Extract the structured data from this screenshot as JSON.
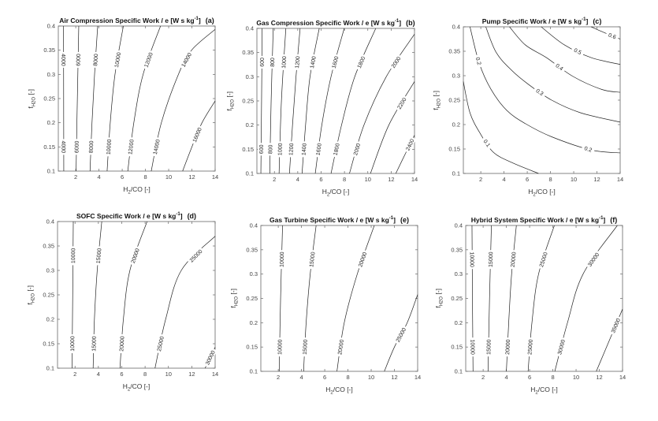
{
  "chart_data": [
    {
      "type": "contour",
      "id": "a",
      "title": "Air Compression Specific Work / e [W s kg",
      "title_sup": "-1",
      "title_end": "]",
      "tag": "(a)",
      "xlabel_main": "H",
      "xlabel_sub": "2",
      "xlabel_end": "/CO [-]",
      "ylabel_main": "f",
      "ylabel_sub": "H2O",
      "ylabel_end": " [-]",
      "xlim": [
        0.5,
        14
      ],
      "ylim": [
        0.1,
        0.4
      ],
      "xticks": [
        2,
        4,
        6,
        8,
        10,
        12,
        14
      ],
      "yticks": [
        0.1,
        0.15,
        0.2,
        0.25,
        0.3,
        0.35,
        0.4
      ],
      "contours": [
        {
          "level": "4000",
          "points": [
            [
              0.97,
              0.1
            ],
            [
              0.96,
              0.25
            ],
            [
              0.95,
              0.4
            ]
          ]
        },
        {
          "level": "6000",
          "points": [
            [
              2.03,
              0.1
            ],
            [
              2.1,
              0.2
            ],
            [
              2.18,
              0.3
            ],
            [
              2.26,
              0.4
            ]
          ]
        },
        {
          "level": "8000",
          "points": [
            [
              3.23,
              0.1
            ],
            [
              3.4,
              0.2
            ],
            [
              3.62,
              0.3
            ],
            [
              3.89,
              0.4
            ]
          ]
        },
        {
          "level": "10000",
          "points": [
            [
              4.7,
              0.1
            ],
            [
              4.97,
              0.2
            ],
            [
              5.38,
              0.3
            ],
            [
              6.1,
              0.4
            ]
          ]
        },
        {
          "level": "12000",
          "points": [
            [
              6.48,
              0.1
            ],
            [
              7.0,
              0.2
            ],
            [
              7.8,
              0.3
            ],
            [
              9.3,
              0.4
            ]
          ]
        },
        {
          "level": "14000",
          "points": [
            [
              8.5,
              0.1
            ],
            [
              9.37,
              0.2
            ],
            [
              10.84,
              0.3
            ],
            [
              11.97,
              0.35
            ],
            [
              14,
              0.393
            ]
          ]
        },
        {
          "level": "16000",
          "points": [
            [
              11.2,
              0.1
            ],
            [
              12.0,
              0.15
            ],
            [
              12.87,
              0.2
            ],
            [
              14,
              0.245
            ]
          ]
        }
      ]
    },
    {
      "type": "contour",
      "id": "b",
      "title": "Gas Compression Specific Work / e [W s kg",
      "title_sup": "-1",
      "title_end": "]",
      "tag": "(b)",
      "xlabel_main": "H",
      "xlabel_sub": "2",
      "xlabel_end": "/CO [-]",
      "ylabel_main": "f",
      "ylabel_sub": "H2O",
      "ylabel_end": " [-]",
      "xlim": [
        0.5,
        14
      ],
      "ylim": [
        0.1,
        0.4
      ],
      "xticks": [
        2,
        4,
        6,
        8,
        10,
        12,
        14
      ],
      "yticks": [
        0.1,
        0.15,
        0.2,
        0.25,
        0.3,
        0.35,
        0.4
      ],
      "contours": [
        {
          "level": "600",
          "points": [
            [
              0.84,
              0.1
            ],
            [
              0.9,
              0.25
            ],
            [
              0.95,
              0.4
            ]
          ]
        },
        {
          "level": "800",
          "points": [
            [
              1.6,
              0.1
            ],
            [
              1.72,
              0.25
            ],
            [
              1.9,
              0.4
            ]
          ]
        },
        {
          "level": "1000",
          "points": [
            [
              2.4,
              0.1
            ],
            [
              2.6,
              0.25
            ],
            [
              2.98,
              0.4
            ]
          ]
        },
        {
          "level": "1200",
          "points": [
            [
              3.29,
              0.1
            ],
            [
              3.55,
              0.2
            ],
            [
              3.85,
              0.3
            ],
            [
              4.2,
              0.4
            ]
          ]
        },
        {
          "level": "1400",
          "points": [
            [
              4.37,
              0.1
            ],
            [
              4.67,
              0.2
            ],
            [
              5.05,
              0.3
            ],
            [
              5.84,
              0.4
            ]
          ]
        },
        {
          "level": "1600",
          "points": [
            [
              5.5,
              0.1
            ],
            [
              6.06,
              0.2
            ],
            [
              6.85,
              0.3
            ],
            [
              7.98,
              0.4
            ]
          ]
        },
        {
          "level": "1800",
          "points": [
            [
              6.85,
              0.1
            ],
            [
              7.75,
              0.2
            ],
            [
              8.88,
              0.3
            ],
            [
              10.68,
              0.4
            ]
          ]
        },
        {
          "level": "2000",
          "points": [
            [
              8.43,
              0.1
            ],
            [
              9.67,
              0.2
            ],
            [
              11.58,
              0.3
            ],
            [
              14,
              0.388
            ]
          ]
        },
        {
          "level": "2200",
          "points": [
            [
              10.23,
              0.1
            ],
            [
              11.8,
              0.2
            ],
            [
              14,
              0.29
            ]
          ]
        },
        {
          "level": "2400",
          "points": [
            [
              12.4,
              0.1
            ],
            [
              13.2,
              0.14
            ],
            [
              14,
              0.179
            ]
          ]
        }
      ]
    },
    {
      "type": "contour",
      "id": "c",
      "title": "Pump Specific Work / e [W s kg",
      "title_sup": "-1",
      "title_end": "]",
      "tag": "(c)",
      "xlabel_main": "H",
      "xlabel_sub": "2",
      "xlabel_end": "/CO [-]",
      "ylabel_main": "f",
      "ylabel_sub": "H2O",
      "ylabel_end": " [-]",
      "xlim": [
        0.5,
        14
      ],
      "ylim": [
        0.1,
        0.4
      ],
      "xticks": [
        2,
        4,
        6,
        8,
        10,
        12,
        14
      ],
      "yticks": [
        0.1,
        0.15,
        0.2,
        0.25,
        0.3,
        0.35,
        0.4
      ],
      "contours": [
        {
          "level": "0.1",
          "points": [
            [
              0.5,
              0.288
            ],
            [
              1.07,
              0.224
            ],
            [
              1.97,
              0.181
            ],
            [
              3.1,
              0.143
            ],
            [
              4.7,
              0.122
            ],
            [
              6.97,
              0.1
            ]
          ]
        },
        {
          "level": "0.2",
          "points": [
            [
              1.07,
              0.4
            ],
            [
              1.86,
              0.326
            ],
            [
              2.88,
              0.272
            ],
            [
              4.24,
              0.229
            ],
            [
              5.83,
              0.202
            ],
            [
              8.1,
              0.175
            ],
            [
              11.5,
              0.148
            ],
            [
              14,
              0.142
            ]
          ]
        },
        {
          "level": "0.3",
          "points": [
            [
              2.43,
              0.4
            ],
            [
              3.34,
              0.347
            ],
            [
              4.7,
              0.31
            ],
            [
              6.06,
              0.283
            ],
            [
              8.1,
              0.25
            ],
            [
              10.6,
              0.224
            ],
            [
              14,
              0.205
            ]
          ]
        },
        {
          "level": "0.4",
          "points": [
            [
              4.47,
              0.4
            ],
            [
              5.83,
              0.363
            ],
            [
              7.65,
              0.337
            ],
            [
              9.9,
              0.299
            ],
            [
              12.4,
              0.272
            ],
            [
              14,
              0.266
            ]
          ]
        },
        {
          "level": "0.5",
          "points": [
            [
              7.2,
              0.4
            ],
            [
              9.2,
              0.363
            ],
            [
              11.5,
              0.337
            ],
            [
              14,
              0.323
            ]
          ]
        },
        {
          "level": "0.6",
          "points": [
            [
              11.5,
              0.4
            ],
            [
              12.64,
              0.388
            ],
            [
              14,
              0.375
            ]
          ]
        }
      ]
    },
    {
      "type": "contour",
      "id": "d",
      "title": "SOFC Specific Work / e [W s kg",
      "title_sup": "-1",
      "title_end": "]",
      "tag": "(d)",
      "xlabel_main": "H",
      "xlabel_sub": "2",
      "xlabel_end": "/CO [-]",
      "ylabel_main": "f",
      "ylabel_sub": "H2O",
      "ylabel_end": " [-]",
      "xlim": [
        0.5,
        14
      ],
      "ylim": [
        0.1,
        0.4
      ],
      "xticks": [
        2,
        4,
        6,
        8,
        10,
        12,
        14
      ],
      "yticks": [
        0.1,
        0.15,
        0.2,
        0.25,
        0.3,
        0.35,
        0.4
      ],
      "contours": [
        {
          "level": "10000",
          "points": [
            [
              1.74,
              0.1
            ],
            [
              1.8,
              0.25
            ],
            [
              1.85,
              0.4
            ]
          ]
        },
        {
          "level": "15000",
          "points": [
            [
              3.55,
              0.1
            ],
            [
              3.66,
              0.2
            ],
            [
              3.9,
              0.3
            ],
            [
              4.29,
              0.4
            ]
          ]
        },
        {
          "level": "20000",
          "points": [
            [
              5.85,
              0.1
            ],
            [
              6.14,
              0.2
            ],
            [
              6.7,
              0.3
            ],
            [
              8.17,
              0.4
            ]
          ]
        },
        {
          "level": "25000",
          "points": [
            [
              8.85,
              0.1
            ],
            [
              9.76,
              0.2
            ],
            [
              11.1,
              0.3
            ],
            [
              14,
              0.37
            ]
          ]
        },
        {
          "level": "30000",
          "points": [
            [
              13.14,
              0.1
            ],
            [
              14,
              0.143
            ]
          ]
        }
      ]
    },
    {
      "type": "contour",
      "id": "e",
      "title": "Gas Turbine Specific Work / e [W s kg",
      "title_sup": "-1",
      "title_end": "]",
      "tag": "(e)",
      "xlabel_main": "H",
      "xlabel_sub": "2",
      "xlabel_end": "/CO [-]",
      "ylabel_main": "f",
      "ylabel_sub": "H2O",
      "ylabel_end": " [-]",
      "xlim": [
        0.5,
        14
      ],
      "ylim": [
        0.1,
        0.4
      ],
      "xticks": [
        2,
        4,
        6,
        8,
        10,
        12,
        14
      ],
      "yticks": [
        0.1,
        0.15,
        0.2,
        0.25,
        0.3,
        0.35,
        0.4
      ],
      "contours": [
        {
          "level": "10000",
          "points": [
            [
              2.08,
              0.1
            ],
            [
              2.2,
              0.25
            ],
            [
              2.37,
              0.4
            ]
          ]
        },
        {
          "level": "15000",
          "points": [
            [
              4.18,
              0.1
            ],
            [
              4.4,
              0.2
            ],
            [
              4.75,
              0.3
            ],
            [
              5.26,
              0.4
            ]
          ]
        },
        {
          "level": "20000",
          "points": [
            [
              7.05,
              0.1
            ],
            [
              7.68,
              0.2
            ],
            [
              8.8,
              0.3
            ],
            [
              10.27,
              0.4
            ]
          ]
        },
        {
          "level": "25000",
          "points": [
            [
              11.13,
              0.1
            ],
            [
              12.0,
              0.15
            ],
            [
              13.1,
              0.2
            ],
            [
              14,
              0.258
            ]
          ]
        }
      ]
    },
    {
      "type": "contour",
      "id": "f",
      "title": "Hybrid System Specific Work / e [W s kg",
      "title_sup": "-1",
      "title_end": "]",
      "tag": "(f)",
      "xlabel_main": "H",
      "xlabel_sub": "2",
      "xlabel_end": "/CO [-]",
      "ylabel_main": "f",
      "ylabel_sub": "H2O",
      "ylabel_end": " [-]",
      "xlim": [
        0.5,
        14
      ],
      "ylim": [
        0.1,
        0.4
      ],
      "xticks": [
        2,
        4,
        6,
        8,
        10,
        12,
        14
      ],
      "yticks": [
        0.1,
        0.15,
        0.2,
        0.25,
        0.3,
        0.35,
        0.4
      ],
      "contours": [
        {
          "level": "10000",
          "points": [
            [
              1.13,
              0.1
            ],
            [
              1.08,
              0.25
            ],
            [
              1.04,
              0.4
            ]
          ]
        },
        {
          "level": "15000",
          "points": [
            [
              2.42,
              0.1
            ],
            [
              2.55,
              0.25
            ],
            [
              2.71,
              0.4
            ]
          ]
        },
        {
          "level": "20000",
          "points": [
            [
              4.0,
              0.1
            ],
            [
              4.2,
              0.2
            ],
            [
              4.45,
              0.3
            ],
            [
              4.86,
              0.4
            ]
          ]
        },
        {
          "level": "25000",
          "points": [
            [
              5.87,
              0.1
            ],
            [
              6.2,
              0.2
            ],
            [
              6.77,
              0.3
            ],
            [
              8.13,
              0.4
            ]
          ]
        },
        {
          "level": "30000",
          "points": [
            [
              8.17,
              0.1
            ],
            [
              9.26,
              0.2
            ],
            [
              10.6,
              0.3
            ],
            [
              13.55,
              0.4
            ]
          ]
        },
        {
          "level": "35000",
          "points": [
            [
              11.74,
              0.1
            ],
            [
              12.8,
              0.16
            ],
            [
              14,
              0.228
            ]
          ]
        }
      ]
    }
  ]
}
